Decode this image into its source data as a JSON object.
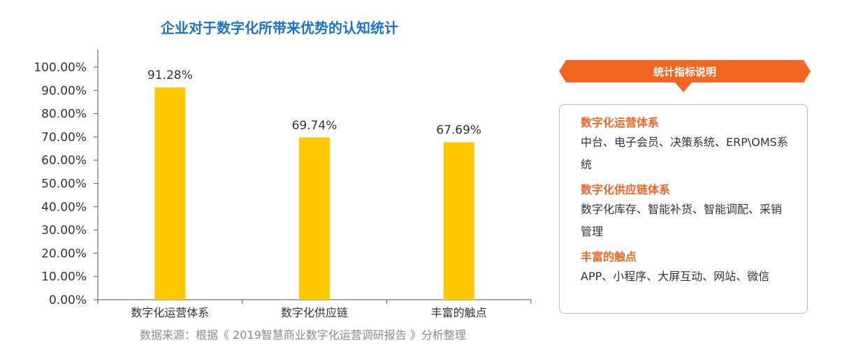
{
  "title": "企业对于数字化所带来优势的认知统计",
  "source": "数据来源：根据《 2019智慧商业数字化运营调研报告 》分析整理",
  "colors": {
    "title": "#1a73c8",
    "bar": "#ffc800",
    "accent": "#f26522",
    "axis": "#555555",
    "text": "#333333",
    "source": "#8a8a8a"
  },
  "chart_data": {
    "type": "bar",
    "categories": [
      "数字化运营体系",
      "数字化供应链",
      "丰富的触点"
    ],
    "values": [
      91.28,
      69.74,
      67.69
    ],
    "data_labels": [
      "91.28%",
      "69.74%",
      "67.69%"
    ],
    "title": "企业对于数字化所带来优势的认知统计",
    "xlabel": "",
    "ylabel": "",
    "ylim": [
      0,
      100
    ],
    "yticks": [
      "0.00%",
      "10.00%",
      "20.00%",
      "30.00%",
      "40.00%",
      "50.00%",
      "60.00%",
      "70.00%",
      "80.00%",
      "90.00%",
      "100.00%"
    ],
    "grid": false,
    "legend": "none"
  },
  "legend_panel": {
    "title": "统计指标说明",
    "items": [
      {
        "heading": "数字化运营体系",
        "desc": "中台、电子会员、决策系统、ERP\\OMS系统"
      },
      {
        "heading": "数字化供应链体系",
        "desc": "数字化库存、智能补货、智能调配、采销管理"
      },
      {
        "heading": "丰富的触点",
        "desc": "APP、小程序、大屏互动、网站、微信"
      }
    ]
  }
}
